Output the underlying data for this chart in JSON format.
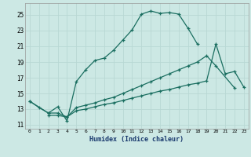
{
  "xlabel": "Humidex (Indice chaleur)",
  "bg_color": "#cce8e4",
  "grid_color": "#b8d8d4",
  "line_color": "#1a6e60",
  "xlim": [
    -0.5,
    23.5
  ],
  "ylim": [
    10.5,
    26.5
  ],
  "yticks": [
    11,
    13,
    15,
    17,
    19,
    21,
    23,
    25
  ],
  "xticks": [
    0,
    1,
    2,
    3,
    4,
    5,
    6,
    7,
    8,
    9,
    10,
    11,
    12,
    13,
    14,
    15,
    16,
    17,
    18,
    19,
    20,
    21,
    22,
    23
  ],
  "line1_x": [
    0,
    1,
    2,
    3,
    4,
    5,
    6,
    7,
    8,
    9,
    10,
    11,
    12,
    13,
    14,
    15,
    16,
    17,
    18
  ],
  "line1_y": [
    14.0,
    13.2,
    12.5,
    13.3,
    11.5,
    16.5,
    18.0,
    19.2,
    19.5,
    20.5,
    21.8,
    23.1,
    25.1,
    25.5,
    25.2,
    25.3,
    25.1,
    23.3,
    21.3
  ],
  "line2_x": [
    0,
    2,
    3,
    4,
    5,
    6,
    7,
    8,
    9,
    10,
    11,
    12,
    13,
    14,
    15,
    16,
    17,
    18,
    19,
    20,
    22
  ],
  "line2_y": [
    14.0,
    12.5,
    12.5,
    12.0,
    13.2,
    13.5,
    13.8,
    14.2,
    14.5,
    15.0,
    15.5,
    16.0,
    16.5,
    17.0,
    17.5,
    18.0,
    18.5,
    19.0,
    19.8,
    18.5,
    15.7
  ],
  "line3_x": [
    2,
    3,
    4,
    5,
    6,
    7,
    8,
    9,
    10,
    11,
    12,
    13,
    14,
    15,
    16,
    17,
    18,
    19,
    20,
    21,
    22,
    23
  ],
  "line3_y": [
    12.2,
    12.2,
    12.0,
    12.8,
    13.0,
    13.3,
    13.6,
    13.8,
    14.1,
    14.4,
    14.7,
    15.0,
    15.3,
    15.5,
    15.8,
    16.1,
    16.3,
    16.6,
    21.3,
    17.5,
    17.8,
    15.8
  ]
}
